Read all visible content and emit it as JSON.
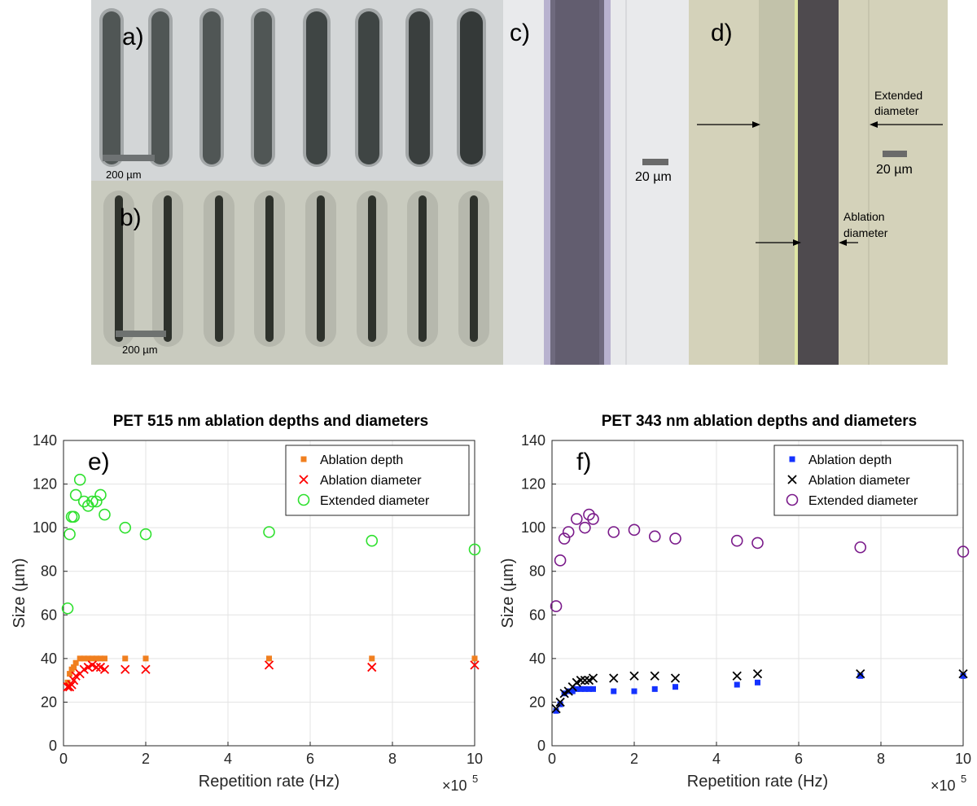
{
  "panels": {
    "a": {
      "label": "a)",
      "scalebar": "200 µm"
    },
    "b": {
      "label": "b)",
      "scalebar": "200 µm"
    },
    "c": {
      "label": "c)",
      "scalebar": "20 µm"
    },
    "d": {
      "label": "d)",
      "scalebar": "20 µm",
      "annotations": [
        "Extended",
        "diameter",
        "Ablation",
        "diameter"
      ]
    }
  },
  "colors": {
    "orange": "#f07f1f",
    "red": "#ff0000",
    "green": "#2ee02e",
    "blue": "#1432ff",
    "black": "#000000",
    "purple": "#7a1a8a"
  },
  "chart_data": [
    {
      "type": "scatter",
      "panel_label": "e)",
      "title": "PET 515 nm ablation depths and diameters",
      "xlabel": "Repetition rate (Hz)",
      "ylabel": "Size (µm)",
      "x_multiplier": "×10",
      "x_exponent": "5",
      "xlim": [
        0,
        1000000
      ],
      "ylim": [
        0,
        140
      ],
      "xticks": [
        "0",
        "2",
        "4",
        "6",
        "8",
        "10"
      ],
      "yticks": [
        "0",
        "20",
        "40",
        "60",
        "80",
        "100",
        "120",
        "140"
      ],
      "grid": true,
      "legend_position": "top-right",
      "series": [
        {
          "name": "Ablation depth",
          "marker": "square",
          "color": "#f07f1f",
          "x": [
            10000,
            15000,
            20000,
            25000,
            30000,
            40000,
            50000,
            60000,
            70000,
            80000,
            90000,
            100000,
            150000,
            200000,
            500000,
            750000,
            1000000
          ],
          "y": [
            29,
            33,
            35,
            36,
            38,
            40,
            40,
            40,
            40,
            40,
            40,
            40,
            40,
            40,
            40,
            40,
            40
          ]
        },
        {
          "name": "Ablation diameter",
          "marker": "x",
          "color": "#ff0000",
          "x": [
            10000,
            15000,
            20000,
            25000,
            30000,
            40000,
            50000,
            60000,
            70000,
            80000,
            90000,
            100000,
            150000,
            200000,
            500000,
            750000,
            1000000
          ],
          "y": [
            27,
            27,
            28,
            30,
            32,
            33,
            35,
            36,
            37,
            36,
            36,
            35,
            35,
            35,
            37,
            36,
            37
          ]
        },
        {
          "name": "Extended diameter",
          "marker": "circle",
          "color": "#2ee02e",
          "x": [
            10000,
            15000,
            20000,
            25000,
            30000,
            40000,
            50000,
            60000,
            70000,
            80000,
            90000,
            100000,
            150000,
            200000,
            500000,
            750000,
            1000000
          ],
          "y": [
            63,
            97,
            105,
            105,
            115,
            122,
            112,
            110,
            112,
            112,
            115,
            106,
            100,
            97,
            98,
            94,
            90
          ]
        }
      ]
    },
    {
      "type": "scatter",
      "panel_label": "f)",
      "title": "PET 343 nm ablation depths and diameters",
      "xlabel": "Repetition rate (Hz)",
      "ylabel": "Size (µm)",
      "x_multiplier": "×10",
      "x_exponent": "5",
      "xlim": [
        0,
        1000000
      ],
      "ylim": [
        0,
        140
      ],
      "xticks": [
        "0",
        "2",
        "4",
        "6",
        "8",
        "10"
      ],
      "yticks": [
        "0",
        "20",
        "40",
        "60",
        "80",
        "100",
        "120",
        "140"
      ],
      "grid": true,
      "legend_position": "top-right",
      "series": [
        {
          "name": "Ablation depth",
          "marker": "square",
          "color": "#1432ff",
          "x": [
            10000,
            20000,
            30000,
            40000,
            50000,
            60000,
            70000,
            80000,
            90000,
            100000,
            150000,
            200000,
            250000,
            300000,
            450000,
            500000,
            750000,
            1000000
          ],
          "y": [
            16,
            19,
            24,
            25,
            25,
            26,
            26,
            26,
            26,
            26,
            25,
            25,
            26,
            27,
            28,
            29,
            32,
            32
          ]
        },
        {
          "name": "Ablation diameter",
          "marker": "x",
          "color": "#000000",
          "x": [
            10000,
            20000,
            30000,
            40000,
            50000,
            60000,
            70000,
            80000,
            90000,
            100000,
            150000,
            200000,
            250000,
            300000,
            450000,
            500000,
            750000,
            1000000
          ],
          "y": [
            17,
            20,
            24,
            25,
            27,
            29,
            30,
            30,
            30,
            31,
            31,
            32,
            32,
            31,
            32,
            33,
            33,
            33
          ]
        },
        {
          "name": "Extended diameter",
          "marker": "circle",
          "color": "#7a1a8a",
          "x": [
            10000,
            20000,
            30000,
            40000,
            60000,
            80000,
            90000,
            100000,
            150000,
            200000,
            250000,
            300000,
            450000,
            500000,
            750000,
            1000000
          ],
          "y": [
            64,
            85,
            95,
            98,
            104,
            100,
            106,
            104,
            98,
            99,
            96,
            95,
            94,
            93,
            91,
            89
          ]
        }
      ]
    }
  ]
}
